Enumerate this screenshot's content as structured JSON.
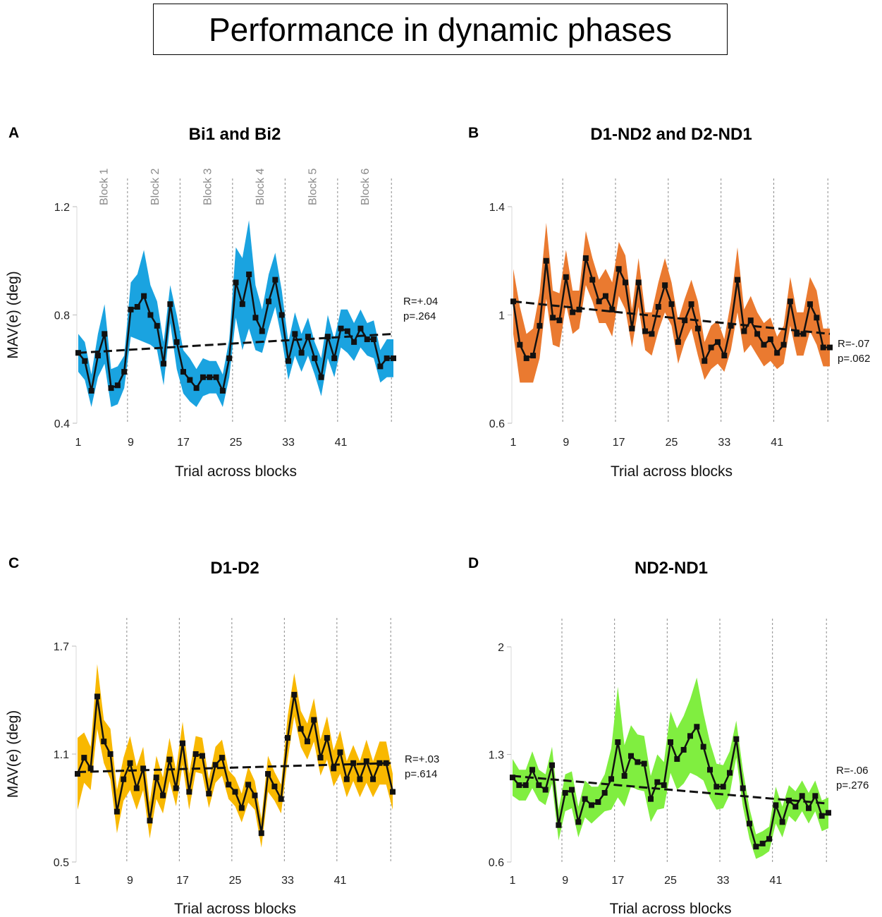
{
  "figure_title": "Performance in dynamic phases",
  "chart_data": [
    {
      "type": "line",
      "panel": "A",
      "title": "Bi1 and Bi2",
      "xlabel": "Trial across blocks",
      "ylabel": "MAV(e) (deg)",
      "ylim": [
        0.4,
        1.2
      ],
      "yticks": [
        "0.4",
        "0.8",
        "1.2"
      ],
      "xticks": [
        "1",
        "9",
        "17",
        "25",
        "33",
        "41"
      ],
      "block_labels": [
        "Block 1",
        "Block 2",
        "Block 3",
        "Block 4",
        "Block 5",
        "Block 6"
      ],
      "band_color": "#1aa3e0",
      "stat_r": "R=+.04",
      "stat_p": "p=.264",
      "trend": [
        0.66,
        0.73
      ],
      "x": [
        1,
        2,
        3,
        4,
        5,
        6,
        7,
        8,
        9,
        10,
        11,
        12,
        13,
        14,
        15,
        16,
        17,
        18,
        19,
        20,
        21,
        22,
        23,
        24,
        25,
        26,
        27,
        28,
        29,
        30,
        31,
        32,
        33,
        34,
        35,
        36,
        37,
        38,
        39,
        40,
        41,
        42,
        43,
        44,
        45,
        46,
        47,
        48,
        49
      ],
      "values": [
        0.66,
        0.63,
        0.52,
        0.65,
        0.73,
        0.53,
        0.54,
        0.59,
        0.82,
        0.83,
        0.87,
        0.8,
        0.76,
        0.62,
        0.84,
        0.7,
        0.59,
        0.56,
        0.53,
        0.57,
        0.57,
        0.57,
        0.52,
        0.64,
        0.92,
        0.84,
        0.95,
        0.79,
        0.74,
        0.85,
        0.93,
        0.8,
        0.63,
        0.73,
        0.66,
        0.72,
        0.64,
        0.57,
        0.72,
        0.64,
        0.75,
        0.74,
        0.7,
        0.75,
        0.71,
        0.71,
        0.61,
        0.64,
        0.64
      ],
      "band": [
        0.07,
        0.07,
        0.06,
        0.08,
        0.11,
        0.07,
        0.07,
        0.06,
        0.1,
        0.12,
        0.17,
        0.11,
        0.09,
        0.08,
        0.07,
        0.1,
        0.08,
        0.08,
        0.07,
        0.07,
        0.06,
        0.06,
        0.06,
        0.07,
        0.13,
        0.17,
        0.2,
        0.12,
        0.08,
        0.1,
        0.1,
        0.09,
        0.07,
        0.08,
        0.07,
        0.07,
        0.06,
        0.07,
        0.08,
        0.07,
        0.07,
        0.08,
        0.07,
        0.07,
        0.06,
        0.07,
        0.06,
        0.07,
        0.07
      ]
    },
    {
      "type": "line",
      "panel": "B",
      "title": "D1-ND2 and D2-ND1",
      "xlabel": "Trial across blocks",
      "ylabel": "",
      "ylim": [
        0.6,
        1.4
      ],
      "yticks": [
        "0.6",
        "1",
        "1.4"
      ],
      "xticks": [
        "1",
        "9",
        "17",
        "25",
        "33",
        "41"
      ],
      "band_color": "#ea7a30",
      "stat_r": "R=-.07",
      "stat_p": "p=.062",
      "trend": [
        1.05,
        0.93
      ],
      "x": [
        1,
        2,
        3,
        4,
        5,
        6,
        7,
        8,
        9,
        10,
        11,
        12,
        13,
        14,
        15,
        16,
        17,
        18,
        19,
        20,
        21,
        22,
        23,
        24,
        25,
        26,
        27,
        28,
        29,
        30,
        31,
        32,
        33,
        34,
        35,
        36,
        37,
        38,
        39,
        40,
        41,
        42,
        43,
        44,
        45,
        46,
        47,
        48,
        49
      ],
      "values": [
        1.05,
        0.89,
        0.84,
        0.85,
        0.96,
        1.2,
        0.99,
        0.98,
        1.14,
        1.01,
        1.02,
        1.21,
        1.13,
        1.05,
        1.07,
        1.02,
        1.17,
        1.12,
        0.95,
        1.12,
        0.94,
        0.93,
        1.03,
        1.11,
        1.04,
        0.9,
        0.98,
        1.04,
        0.95,
        0.83,
        0.88,
        0.9,
        0.85,
        0.96,
        1.13,
        0.94,
        0.98,
        0.93,
        0.89,
        0.91,
        0.86,
        0.89,
        1.05,
        0.93,
        0.93,
        1.04,
        0.99,
        0.88,
        0.88
      ],
      "band": [
        0.12,
        0.14,
        0.09,
        0.1,
        0.12,
        0.14,
        0.1,
        0.1,
        0.1,
        0.08,
        0.07,
        0.1,
        0.08,
        0.08,
        0.1,
        0.1,
        0.1,
        0.1,
        0.07,
        0.09,
        0.07,
        0.08,
        0.09,
        0.1,
        0.08,
        0.08,
        0.08,
        0.09,
        0.1,
        0.07,
        0.08,
        0.08,
        0.06,
        0.09,
        0.12,
        0.08,
        0.09,
        0.08,
        0.08,
        0.08,
        0.06,
        0.07,
        0.09,
        0.08,
        0.08,
        0.1,
        0.1,
        0.07,
        0.07
      ]
    },
    {
      "type": "line",
      "panel": "C",
      "title": "D1-D2",
      "xlabel": "Trial across blocks",
      "ylabel": "MAV(e) (deg)",
      "ylim": [
        0.5,
        1.7
      ],
      "yticks": [
        "0.5",
        "1.1",
        "1.7"
      ],
      "xticks": [
        "1",
        "9",
        "17",
        "25",
        "33",
        "41"
      ],
      "band_color": "#f8b800",
      "stat_r": "R=+.03",
      "stat_p": "p=.614",
      "trend": [
        1.0,
        1.05
      ],
      "x": [
        1,
        2,
        3,
        4,
        5,
        6,
        7,
        8,
        9,
        10,
        11,
        12,
        13,
        14,
        15,
        16,
        17,
        18,
        19,
        20,
        21,
        22,
        23,
        24,
        25,
        26,
        27,
        28,
        29,
        30,
        31,
        32,
        33,
        34,
        35,
        36,
        37,
        38,
        39,
        40,
        41,
        42,
        43,
        44,
        45,
        46,
        47,
        48,
        49
      ],
      "values": [
        0.99,
        1.08,
        1.02,
        1.42,
        1.17,
        1.1,
        0.78,
        0.96,
        1.05,
        0.91,
        1.02,
        0.73,
        0.97,
        0.87,
        1.07,
        0.91,
        1.16,
        0.89,
        1.1,
        1.09,
        0.88,
        1.04,
        1.08,
        0.93,
        0.89,
        0.8,
        0.93,
        0.87,
        0.66,
        0.99,
        0.92,
        0.85,
        1.19,
        1.43,
        1.24,
        1.17,
        1.29,
        1.08,
        1.19,
        1.02,
        1.11,
        0.96,
        1.05,
        0.96,
        1.06,
        0.96,
        1.05,
        1.05,
        0.89
      ],
      "band": [
        0.2,
        0.14,
        0.12,
        0.18,
        0.12,
        0.14,
        0.12,
        0.12,
        0.15,
        0.12,
        0.12,
        0.1,
        0.12,
        0.1,
        0.12,
        0.1,
        0.12,
        0.1,
        0.1,
        0.1,
        0.08,
        0.1,
        0.1,
        0.08,
        0.08,
        0.08,
        0.1,
        0.08,
        0.08,
        0.1,
        0.08,
        0.08,
        0.12,
        0.12,
        0.1,
        0.1,
        0.12,
        0.1,
        0.12,
        0.1,
        0.12,
        0.1,
        0.1,
        0.1,
        0.12,
        0.1,
        0.12,
        0.12,
        0.1
      ]
    },
    {
      "type": "line",
      "panel": "D",
      "title": "ND2-ND1",
      "xlabel": "Trial across blocks",
      "ylabel": "",
      "ylim": [
        0.6,
        2.0
      ],
      "yticks": [
        "0.6",
        "1.3",
        "2"
      ],
      "xticks": [
        "1",
        "9",
        "17",
        "25",
        "33",
        "41"
      ],
      "band_color": "#80ee40",
      "stat_r": "R=-.06",
      "stat_p": "p=.276",
      "trend": [
        1.16,
        0.98
      ],
      "x": [
        1,
        2,
        3,
        4,
        5,
        6,
        7,
        8,
        9,
        10,
        11,
        12,
        13,
        14,
        15,
        16,
        17,
        18,
        19,
        20,
        21,
        22,
        23,
        24,
        25,
        26,
        27,
        28,
        29,
        30,
        31,
        32,
        33,
        34,
        35,
        36,
        37,
        38,
        39,
        40,
        41,
        42,
        43,
        44,
        45,
        46,
        47,
        48,
        49
      ],
      "values": [
        1.15,
        1.1,
        1.1,
        1.2,
        1.1,
        1.07,
        1.23,
        0.84,
        1.05,
        1.07,
        0.86,
        1.01,
        0.97,
        0.99,
        1.05,
        1.14,
        1.38,
        1.16,
        1.29,
        1.25,
        1.24,
        1.01,
        1.12,
        1.1,
        1.38,
        1.27,
        1.33,
        1.42,
        1.48,
        1.35,
        1.2,
        1.09,
        1.09,
        1.18,
        1.4,
        1.08,
        0.85,
        0.7,
        0.72,
        0.75,
        0.97,
        0.86,
        1.0,
        0.96,
        1.03,
        0.95,
        1.03,
        0.9,
        0.92
      ],
      "band": [
        0.12,
        0.1,
        0.1,
        0.12,
        0.1,
        0.1,
        0.12,
        0.1,
        0.12,
        0.12,
        0.1,
        0.12,
        0.12,
        0.1,
        0.12,
        0.2,
        0.36,
        0.2,
        0.2,
        0.18,
        0.18,
        0.15,
        0.18,
        0.15,
        0.2,
        0.2,
        0.22,
        0.24,
        0.32,
        0.22,
        0.18,
        0.15,
        0.14,
        0.14,
        0.12,
        0.12,
        0.1,
        0.08,
        0.08,
        0.08,
        0.12,
        0.1,
        0.1,
        0.1,
        0.1,
        0.1,
        0.1,
        0.1,
        0.1
      ]
    }
  ]
}
